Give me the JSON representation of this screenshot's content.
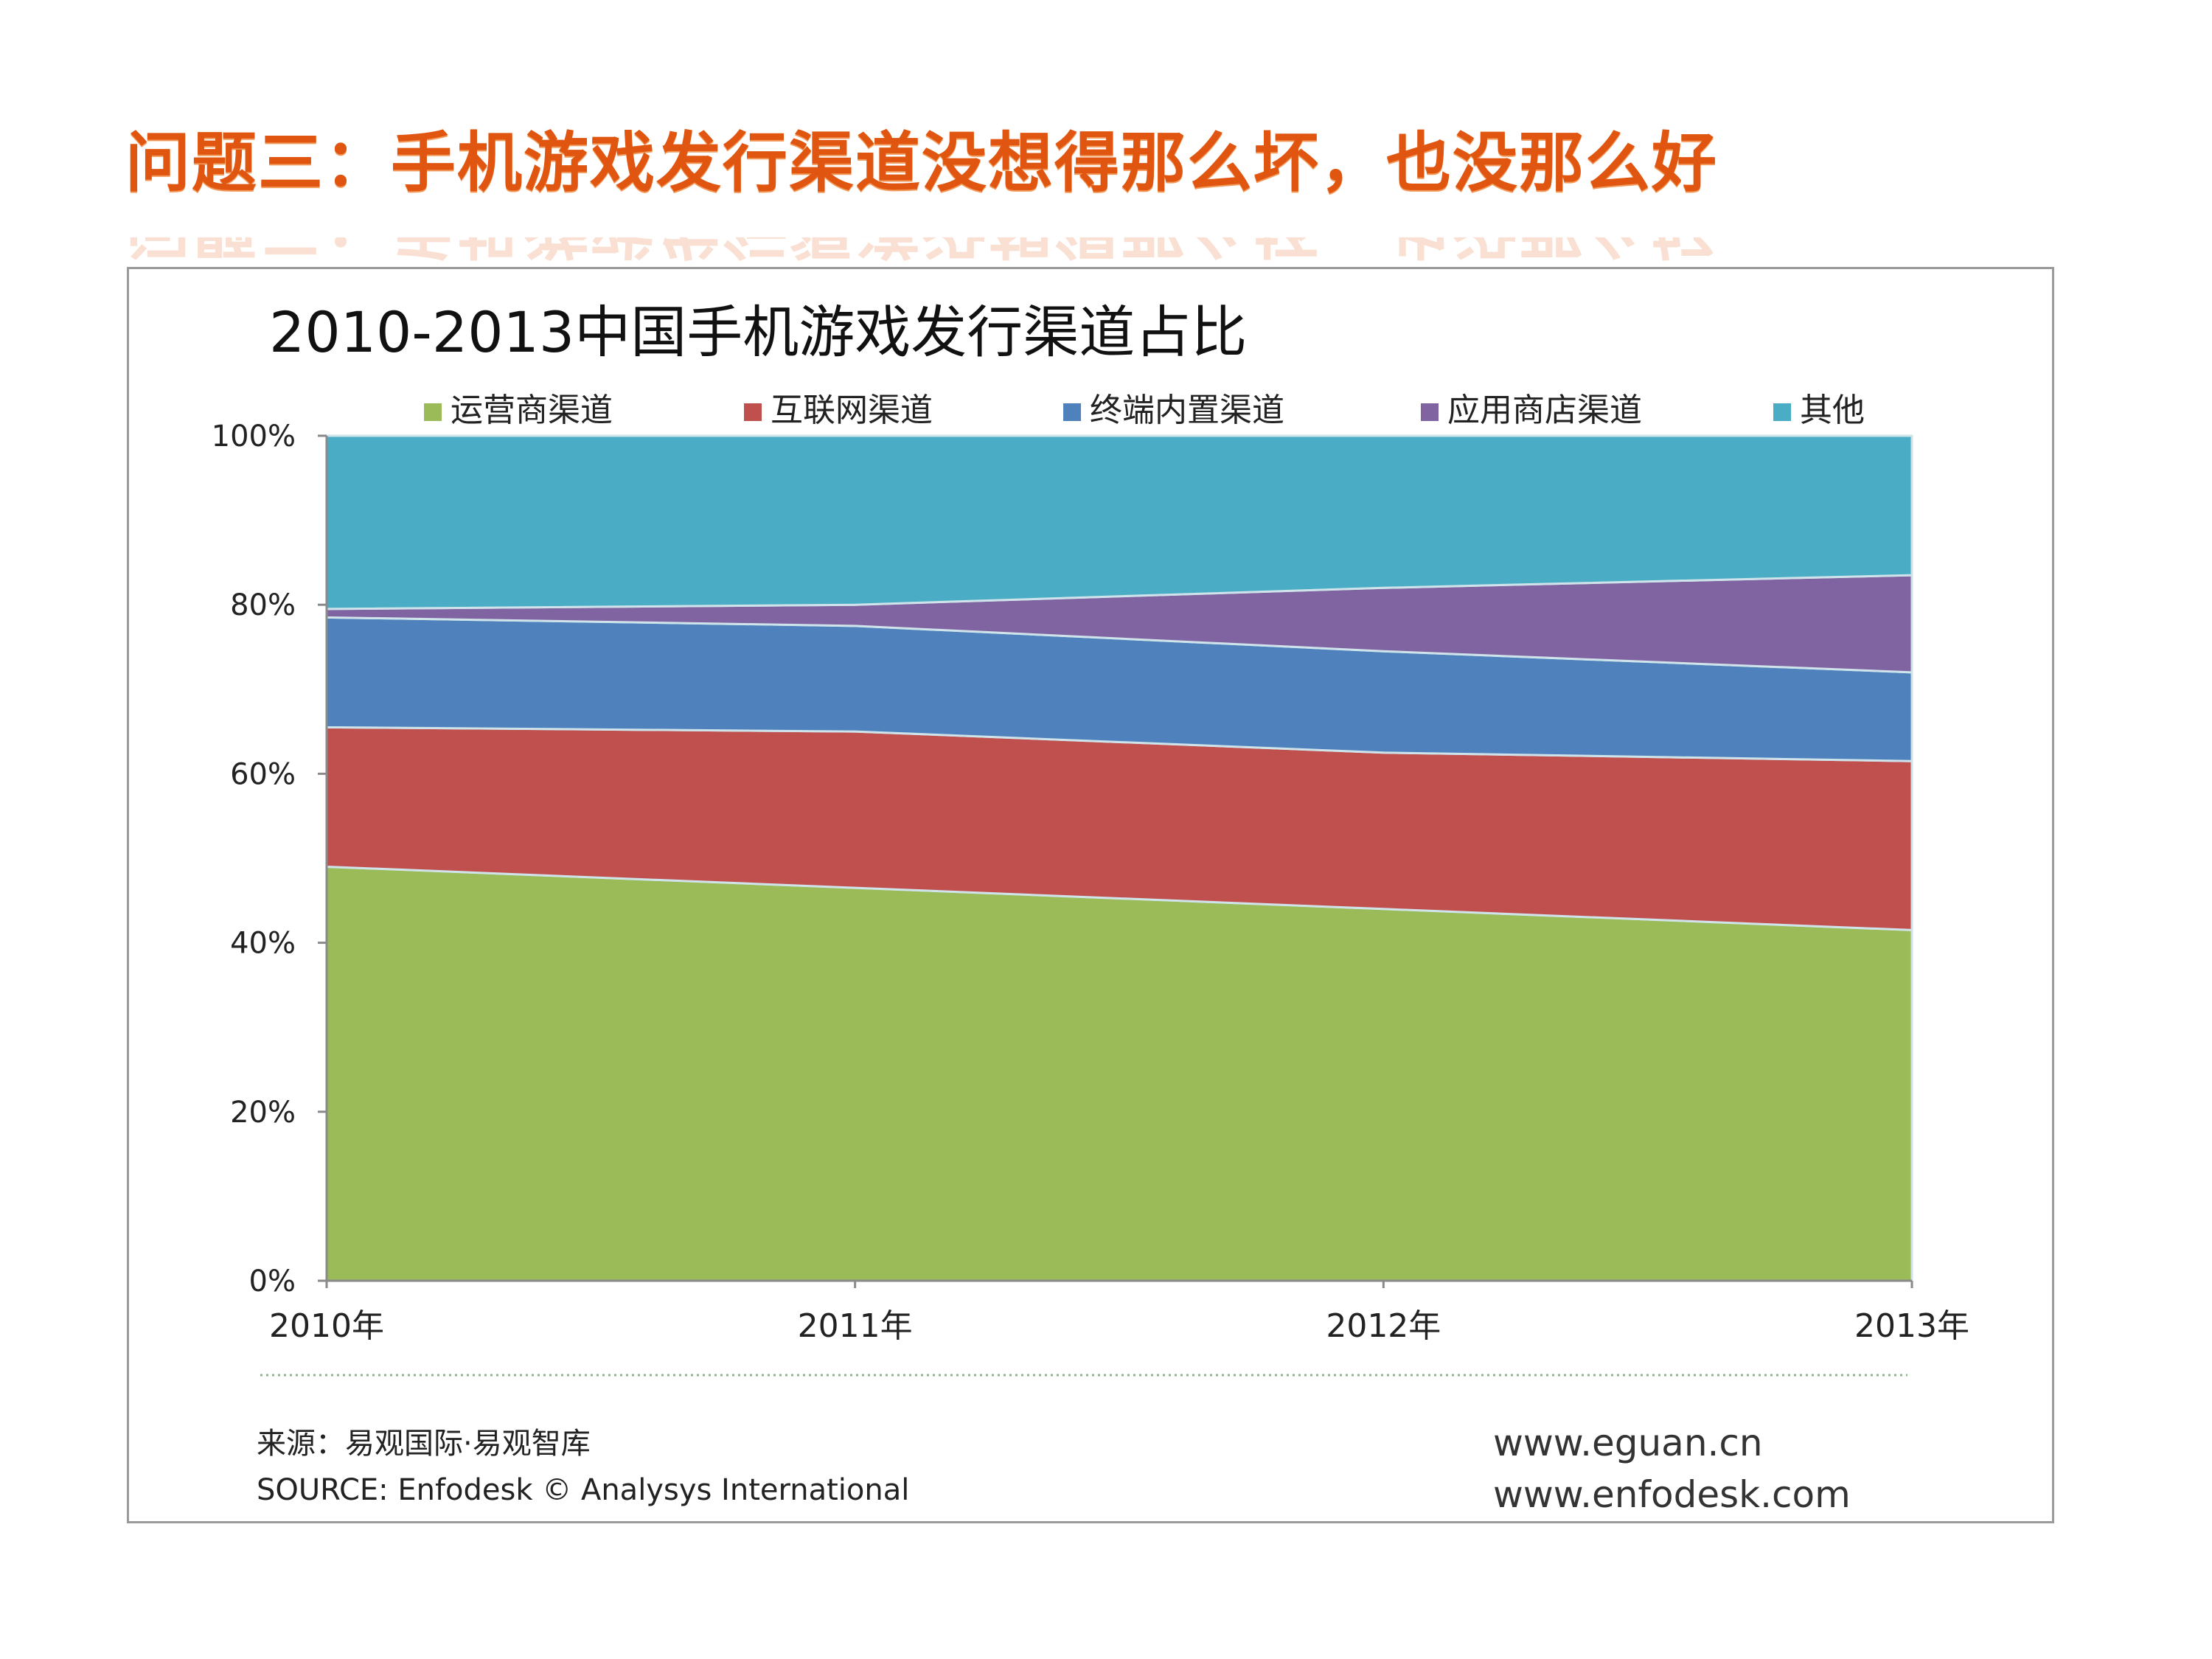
{
  "slide": {
    "title": "问题三：手机游戏发行渠道没想得那么坏，也没那么好"
  },
  "footer": {
    "source_cn": "来源：易观国际·易观智库",
    "source_en": "SOURCE: Enfodesk © Analysys International",
    "url1": "www.eguan.cn",
    "url2": "www.enfodesk.com"
  },
  "chart_data": {
    "type": "area",
    "stacked": "percent",
    "title": "2010-2013中国手机游戏发行渠道占比",
    "categories": [
      "2010年",
      "2011年",
      "2012年",
      "2013年"
    ],
    "y_ticks": [
      "0%",
      "20%",
      "40%",
      "60%",
      "80%",
      "100%"
    ],
    "ylim": [
      0,
      100
    ],
    "legend_position": "top",
    "grid": false,
    "series": [
      {
        "name": "运营商渠道",
        "color": "#9bbb59",
        "values": [
          49.0,
          46.5,
          44.0,
          41.5
        ]
      },
      {
        "name": "互联网渠道",
        "color": "#c0504d",
        "values": [
          16.5,
          18.5,
          18.5,
          20.0
        ]
      },
      {
        "name": "终端内置渠道",
        "color": "#4f81bd",
        "values": [
          13.0,
          12.5,
          12.0,
          10.5
        ]
      },
      {
        "name": "应用商店渠道",
        "color": "#8064a2",
        "values": [
          1.0,
          2.5,
          7.5,
          11.5
        ]
      },
      {
        "name": "其他",
        "color": "#4bacc6",
        "values": [
          20.5,
          20.0,
          18.0,
          16.5
        ]
      }
    ]
  }
}
